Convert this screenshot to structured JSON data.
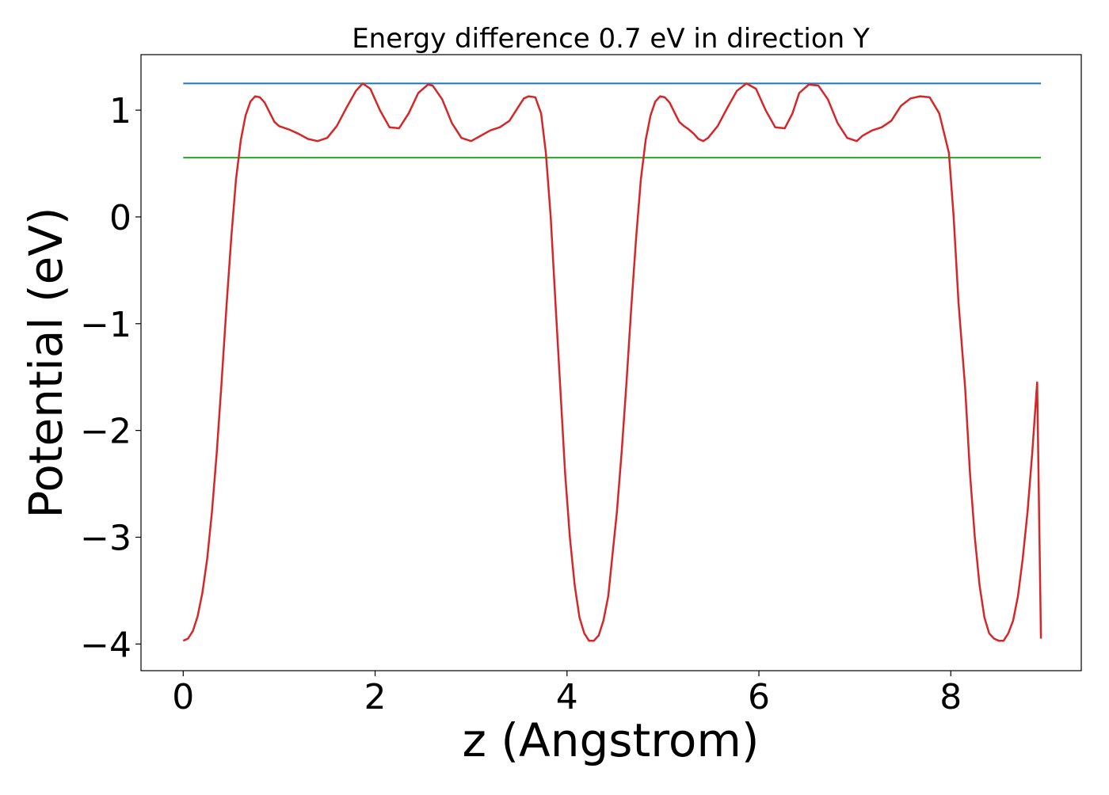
{
  "chart_data": {
    "type": "line",
    "title": "Energy difference 0.7 eV in direction Y",
    "xlabel": "z (Angstrom)",
    "ylabel": "Potential (eV)",
    "xlim": [
      -0.44,
      9.36
    ],
    "ylim": [
      -4.25,
      1.52
    ],
    "xticks": [
      0,
      2,
      4,
      6,
      8
    ],
    "yticks": [
      -4,
      -3,
      -2,
      -1,
      0,
      1
    ],
    "xtick_labels": [
      "0",
      "2",
      "4",
      "6",
      "8"
    ],
    "ytick_labels": [
      "−4",
      "−3",
      "−2",
      "−1",
      "0",
      "1"
    ],
    "grid": false,
    "legend": "none",
    "series": [
      {
        "color": "#1f77b4",
        "x": [
          0,
          8.94
        ],
        "y": [
          1.25,
          1.25
        ]
      },
      {
        "color": "#2ca02c",
        "x": [
          0,
          8.94
        ],
        "y": [
          0.555,
          0.555
        ]
      },
      {
        "color": "#d62728",
        "x": [
          0,
          0.05,
          0.1,
          0.15,
          0.2,
          0.25,
          0.3,
          0.35,
          0.4,
          0.45,
          0.5,
          0.55,
          0.6,
          0.65,
          0.7,
          0.75,
          0.8,
          0.85,
          0.9,
          0.95,
          1.0,
          1.1,
          1.2,
          1.3,
          1.4,
          1.5,
          1.6,
          1.7,
          1.8,
          1.87,
          1.95,
          2.05,
          2.15,
          2.25,
          2.35,
          2.45,
          2.55,
          2.6,
          2.7,
          2.8,
          2.9,
          3.0,
          3.1,
          3.2,
          3.3,
          3.4,
          3.5,
          3.55,
          3.6,
          3.67,
          3.73,
          3.78,
          3.83,
          3.88,
          3.93,
          3.98,
          4.03,
          4.08,
          4.13,
          4.18,
          4.23,
          4.28,
          4.33,
          4.38,
          4.43,
          4.47,
          4.52,
          4.57,
          4.62,
          4.67,
          4.72,
          4.77,
          4.82,
          4.87,
          4.92,
          4.97,
          5.02,
          5.07,
          5.12,
          5.17,
          5.22,
          5.27,
          5.32,
          5.37,
          5.42,
          5.47,
          5.57,
          5.67,
          5.77,
          5.87,
          5.97,
          6.07,
          6.17,
          6.27,
          6.35,
          6.42,
          6.52,
          6.62,
          6.72,
          6.82,
          6.92,
          7.02,
          7.08,
          7.18,
          7.28,
          7.38,
          7.48,
          7.58,
          7.68,
          7.78,
          7.88,
          7.98,
          8.03,
          8.08,
          8.15,
          8.2,
          8.25,
          8.3,
          8.35,
          8.4,
          8.45,
          8.5,
          8.55,
          8.6,
          8.65,
          8.7,
          8.75,
          8.8,
          8.85,
          8.9,
          8.94
        ],
        "y": [
          -3.97,
          -3.95,
          -3.88,
          -3.74,
          -3.52,
          -3.2,
          -2.76,
          -2.2,
          -1.55,
          -0.85,
          -0.2,
          0.35,
          0.72,
          0.95,
          1.08,
          1.13,
          1.12,
          1.07,
          0.98,
          0.89,
          0.85,
          0.82,
          0.78,
          0.73,
          0.71,
          0.74,
          0.85,
          1.02,
          1.18,
          1.25,
          1.2,
          1.0,
          0.84,
          0.83,
          0.97,
          1.16,
          1.24,
          1.23,
          1.1,
          0.88,
          0.74,
          0.71,
          0.76,
          0.81,
          0.84,
          0.9,
          1.04,
          1.11,
          1.13,
          1.12,
          0.97,
          0.6,
          0.0,
          -0.8,
          -1.6,
          -2.4,
          -3.0,
          -3.45,
          -3.75,
          -3.9,
          -3.97,
          -3.97,
          -3.92,
          -3.78,
          -3.55,
          -3.2,
          -2.76,
          -2.2,
          -1.55,
          -0.85,
          -0.2,
          0.35,
          0.72,
          0.95,
          1.08,
          1.13,
          1.12,
          1.07,
          0.98,
          0.89,
          0.85,
          0.82,
          0.78,
          0.73,
          0.71,
          0.74,
          0.85,
          1.02,
          1.18,
          1.25,
          1.2,
          1.0,
          0.84,
          0.83,
          0.97,
          1.16,
          1.24,
          1.23,
          1.1,
          0.88,
          0.74,
          0.71,
          0.76,
          0.81,
          0.84,
          0.9,
          1.04,
          1.11,
          1.13,
          1.12,
          0.97,
          0.6,
          0.0,
          -0.8,
          -1.6,
          -2.4,
          -3.0,
          -3.45,
          -3.75,
          -3.9,
          -3.95,
          -3.97,
          -3.97,
          -3.9,
          -3.78,
          -3.55,
          -3.2,
          -2.76,
          -2.2,
          -1.55,
          -3.95
        ]
      }
    ]
  }
}
